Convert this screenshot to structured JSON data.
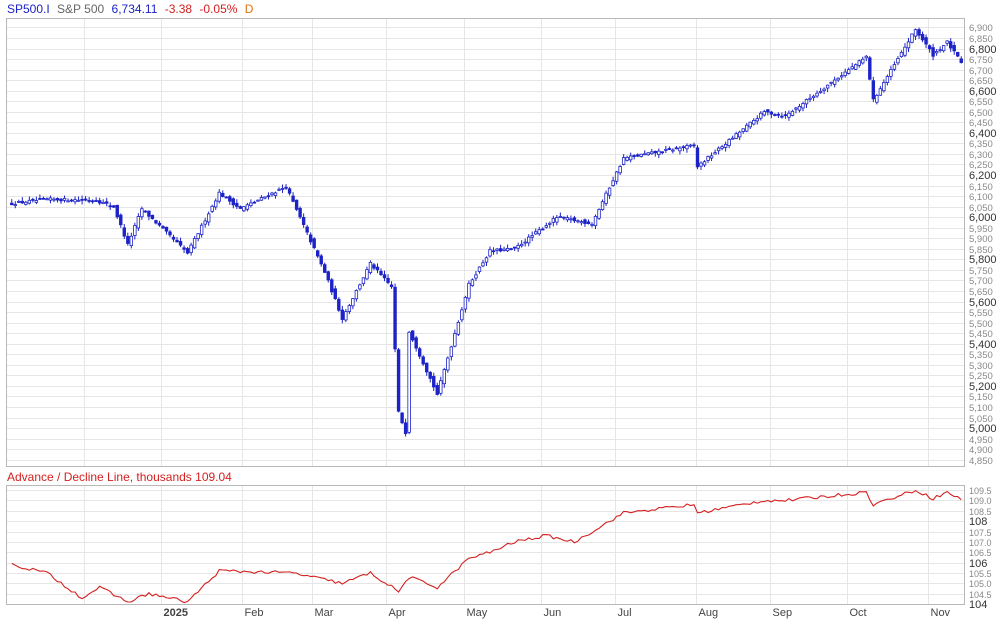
{
  "header": {
    "symbol": "SP500.I",
    "name": "S&P 500",
    "last": "6,734.11",
    "change": "-3.38",
    "change_pct": "-0.05%",
    "period": "D"
  },
  "colors": {
    "price": "#1c23c7",
    "ad_line": "#d42020",
    "grid": "#e6e6e6",
    "frame": "#b8b8b8",
    "change_negative": "#d42020",
    "period": "#e0700e",
    "label": "#555555"
  },
  "chart_data": [
    {
      "type": "candlestick",
      "title": "S&P 500",
      "ylim": [
        4820,
        6940
      ],
      "y_ticks": [
        4850,
        4900,
        4950,
        5000,
        5050,
        5100,
        5150,
        5200,
        5250,
        5300,
        5350,
        5400,
        5450,
        5500,
        5550,
        5600,
        5650,
        5700,
        5750,
        5800,
        5850,
        5900,
        5950,
        6000,
        6050,
        6100,
        6150,
        6200,
        6250,
        6300,
        6350,
        6400,
        6450,
        6500,
        6550,
        6600,
        6650,
        6700,
        6750,
        6800,
        6850,
        6900
      ],
      "y_ticks_major": [
        5000,
        5200,
        5400,
        5600,
        5800,
        6000,
        6200,
        6400,
        6600,
        6800
      ],
      "y_tick_labels": [
        "4,850",
        "4,900",
        "4,950",
        "5,000",
        "5,050",
        "5,100",
        "5,150",
        "5,200",
        "5,250",
        "5,300",
        "5,350",
        "5,400",
        "5,450",
        "5,500",
        "5,550",
        "5,600",
        "5,650",
        "5,700",
        "5,750",
        "5,800",
        "5,850",
        "5,900",
        "5,950",
        "6,000",
        "6,050",
        "6,100",
        "6,150",
        "6,200",
        "6,250",
        "6,300",
        "6,350",
        "6,400",
        "6,450",
        "6,500",
        "6,550",
        "6,600",
        "6,650",
        "6,700",
        "6,750",
        "6,800",
        "6,850",
        "6,900"
      ],
      "x_tick_labels": [
        "2025",
        "Feb",
        "Mar",
        "Apr",
        "May",
        "Jun",
        "Jul",
        "Aug",
        "Sep",
        "Oct",
        "Nov"
      ],
      "close_anchors": [
        [
          "2024-11-01",
          6065
        ],
        [
          "2024-11-15",
          6085
        ],
        [
          "2024-12-05",
          6080
        ],
        [
          "2024-12-12",
          6050
        ],
        [
          "2024-12-18",
          5870
        ],
        [
          "2024-12-24",
          6040
        ],
        [
          "2025-01-10",
          5830
        ],
        [
          "2025-01-23",
          6115
        ],
        [
          "2025-01-31",
          6040
        ],
        [
          "2025-02-19",
          6145
        ],
        [
          "2025-03-06",
          5740
        ],
        [
          "2025-03-13",
          5520
        ],
        [
          "2025-03-25",
          5780
        ],
        [
          "2025-04-02",
          5670
        ],
        [
          "2025-04-04",
          5075
        ],
        [
          "2025-04-08",
          4980
        ],
        [
          "2025-04-09",
          5460
        ],
        [
          "2025-04-21",
          5160
        ],
        [
          "2025-05-02",
          5680
        ],
        [
          "2025-05-12",
          5840
        ],
        [
          "2025-05-21",
          5850
        ],
        [
          "2025-06-06",
          6000
        ],
        [
          "2025-06-20",
          5970
        ],
        [
          "2025-07-03",
          6280
        ],
        [
          "2025-07-31",
          6340
        ],
        [
          "2025-08-01",
          6240
        ],
        [
          "2025-08-28",
          6500
        ],
        [
          "2025-09-05",
          6480
        ],
        [
          "2025-10-08",
          6760
        ],
        [
          "2025-10-10",
          6555
        ],
        [
          "2025-10-28",
          6890
        ],
        [
          "2025-11-04",
          6770
        ],
        [
          "2025-11-10",
          6830
        ],
        [
          "2025-11-14",
          6734
        ]
      ],
      "last_close": 6734.11
    },
    {
      "type": "line",
      "title": "Advance / Decline Line, thousands",
      "last_value": "109.04",
      "ylim": [
        104.0,
        109.7
      ],
      "y_ticks": [
        104,
        104.5,
        105,
        105.5,
        106,
        106.5,
        107,
        107.5,
        108,
        108.5,
        109,
        109.5
      ],
      "y_tick_labels": [
        "104",
        "104.5",
        "105.0",
        "105.5",
        "106",
        "106.5",
        "107.0",
        "107.5",
        "108",
        "108.5",
        "109.0",
        "109.5"
      ],
      "y_ticks_major": [
        104,
        106,
        108
      ],
      "anchors": [
        [
          "2024-11-01",
          105.9
        ],
        [
          "2024-11-15",
          105.5
        ],
        [
          "2024-12-01",
          104.3
        ],
        [
          "2024-12-06",
          104.8
        ],
        [
          "2024-12-18",
          104.1
        ],
        [
          "2024-12-26",
          104.5
        ],
        [
          "2025-01-10",
          104.1
        ],
        [
          "2025-01-23",
          105.6
        ],
        [
          "2025-02-21",
          105.5
        ],
        [
          "2025-03-13",
          105.0
        ],
        [
          "2025-03-25",
          105.5
        ],
        [
          "2025-04-04",
          104.6
        ],
        [
          "2025-04-09",
          105.3
        ],
        [
          "2025-04-21",
          104.8
        ],
        [
          "2025-05-02",
          106.2
        ],
        [
          "2025-05-12",
          106.5
        ],
        [
          "2025-05-21",
          107.0
        ],
        [
          "2025-06-03",
          107.3
        ],
        [
          "2025-06-13",
          107.0
        ],
        [
          "2025-06-23",
          107.6
        ],
        [
          "2025-07-03",
          108.4
        ],
        [
          "2025-07-31",
          108.8
        ],
        [
          "2025-08-01",
          108.4
        ],
        [
          "2025-08-28",
          109.0
        ],
        [
          "2025-09-05",
          109.0
        ],
        [
          "2025-10-08",
          109.4
        ],
        [
          "2025-10-10",
          108.8
        ],
        [
          "2025-10-28",
          109.5
        ],
        [
          "2025-11-04",
          109.1
        ],
        [
          "2025-11-10",
          109.4
        ],
        [
          "2025-11-14",
          109.04
        ]
      ]
    }
  ]
}
